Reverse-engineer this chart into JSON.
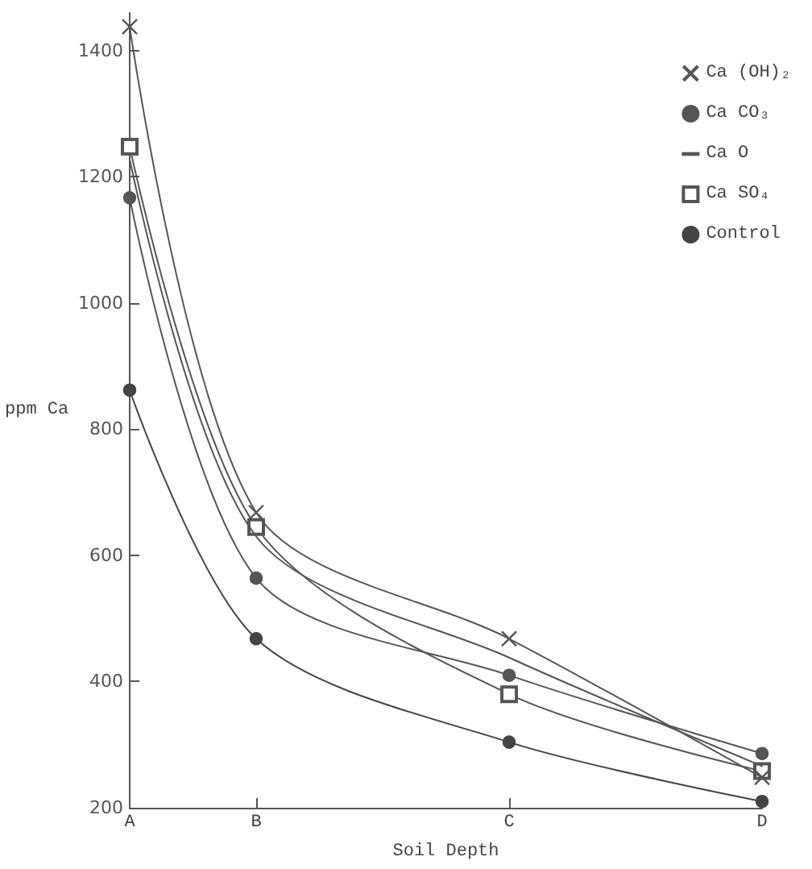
{
  "chart_data": {
    "type": "line",
    "xlabel": "Soil Depth",
    "ylabel": "ppm Ca",
    "categories": [
      "A",
      "B",
      null,
      "C",
      null,
      "D"
    ],
    "ylim": [
      200,
      1460
    ],
    "yticks": [
      200,
      400,
      600,
      800,
      1000,
      1200,
      1400
    ],
    "series": [
      {
        "name": "Ca (OH)₂",
        "color": "#555555",
        "marker": "cross",
        "values": [
          1438,
          668,
          null,
          468,
          null,
          248
        ]
      },
      {
        "name": "Ca CO₃",
        "color": "#555555",
        "marker": "circle",
        "values": [
          1167,
          564,
          null,
          410,
          null,
          286
        ]
      },
      {
        "name": "Ca O",
        "color": "#555555",
        "marker": "none",
        "values": [
          1228,
          630,
          null,
          438,
          null,
          266
        ]
      },
      {
        "name": "Ca SO₄",
        "color": "#555555",
        "marker": "square",
        "values": [
          1248,
          645,
          null,
          380,
          null,
          258
        ]
      },
      {
        "name": "Control",
        "color": "#444444",
        "marker": "circle",
        "values": [
          862,
          468,
          null,
          304,
          null,
          210
        ]
      }
    ],
    "grid": false,
    "legend": "top right"
  }
}
